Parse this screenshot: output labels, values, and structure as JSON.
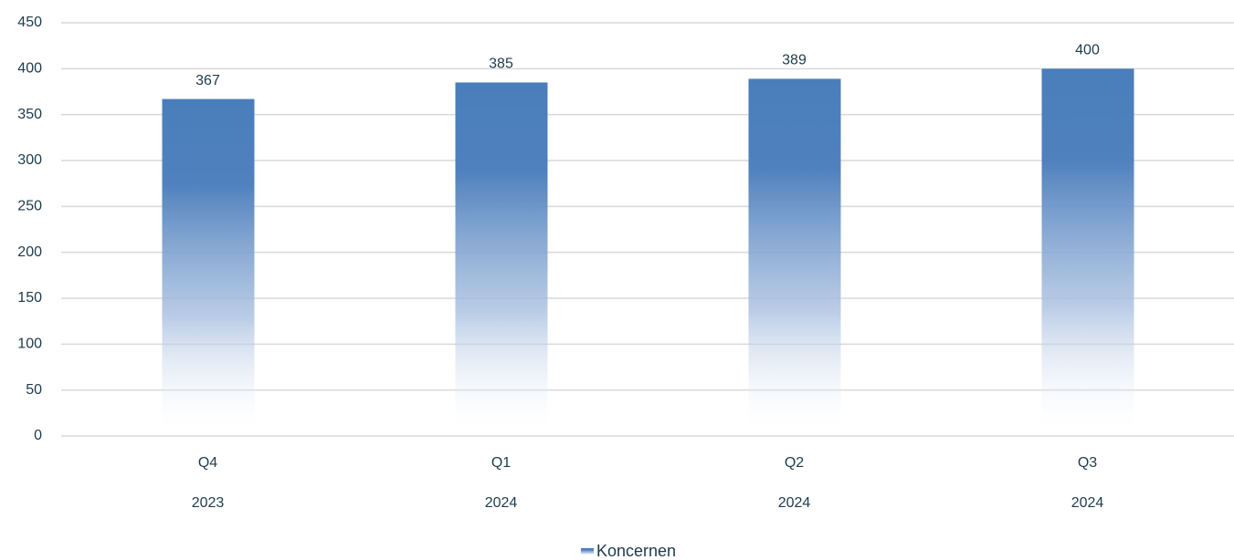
{
  "chart_data": {
    "type": "bar",
    "categories": [
      "Q4",
      "Q1",
      "Q2",
      "Q3"
    ],
    "years": [
      "2023",
      "2024",
      "2024",
      "2024"
    ],
    "series": [
      {
        "name": "Koncernen",
        "color": "#4a7ebb",
        "values": [
          367,
          385,
          389,
          400
        ]
      }
    ],
    "ylim": [
      0,
      450
    ],
    "yticks": [
      0,
      50,
      100,
      150,
      200,
      250,
      300,
      350,
      400,
      450
    ],
    "grid": true,
    "legend": "bottom"
  }
}
